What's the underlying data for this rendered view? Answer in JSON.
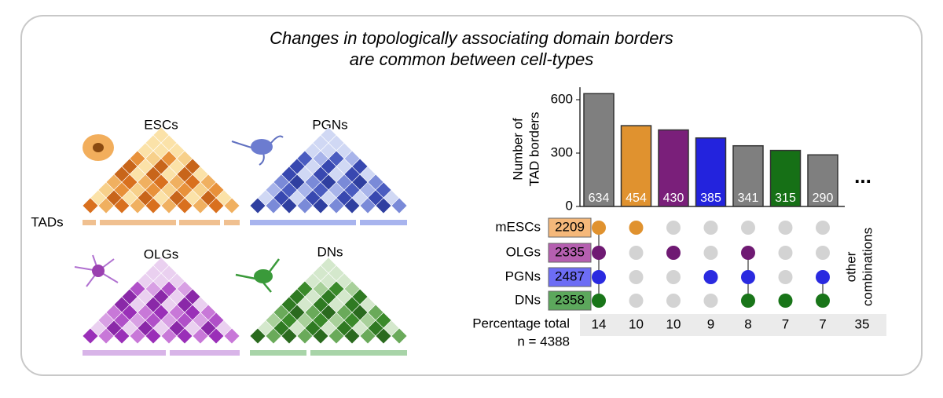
{
  "title": [
    "Changes in topologically associating domain borders",
    "are common between cell-types"
  ],
  "panels": [
    {
      "label": "ESCs"
    },
    {
      "label": "PGNs"
    },
    {
      "label": "OLGs"
    },
    {
      "label": "DNs"
    }
  ],
  "tads_label": "TADs",
  "chart_data": {
    "type": "upset",
    "ylabel": [
      "Number of",
      "TAD borders"
    ],
    "ylim": [
      0,
      670
    ],
    "yticks": [
      0,
      300,
      600
    ],
    "values": [
      634,
      454,
      430,
      385,
      341,
      315,
      290
    ],
    "colors": [
      "#7f7f7f",
      "#e0922f",
      "#7a1f7a",
      "#2323dd",
      "#7f7f7f",
      "#167016",
      "#7f7f7f"
    ],
    "more": "...",
    "sets": [
      {
        "name": "mESCs",
        "size": 2209,
        "color": "#f5b87a",
        "dot": "#e0922f"
      },
      {
        "name": "OLGs",
        "size": 2335,
        "color": "#b55fb0",
        "dot": "#6f1a73"
      },
      {
        "name": "PGNs",
        "size": 2487,
        "color": "#6d6df5",
        "dot": "#2a2ae0"
      },
      {
        "name": "DNs",
        "size": 2358,
        "color": "#5ca85c",
        "dot": "#197519"
      }
    ],
    "membership": [
      [
        0,
        1,
        2,
        3
      ],
      [
        0
      ],
      [
        1
      ],
      [
        2
      ],
      [
        1,
        2,
        3
      ],
      [
        3
      ],
      [
        2,
        3
      ]
    ],
    "percent_label": "Percentage total",
    "n_label": "n = 4388",
    "percentages": [
      14,
      10,
      10,
      9,
      8,
      7,
      7,
      35
    ],
    "other_label": [
      "other",
      "combinations"
    ]
  }
}
